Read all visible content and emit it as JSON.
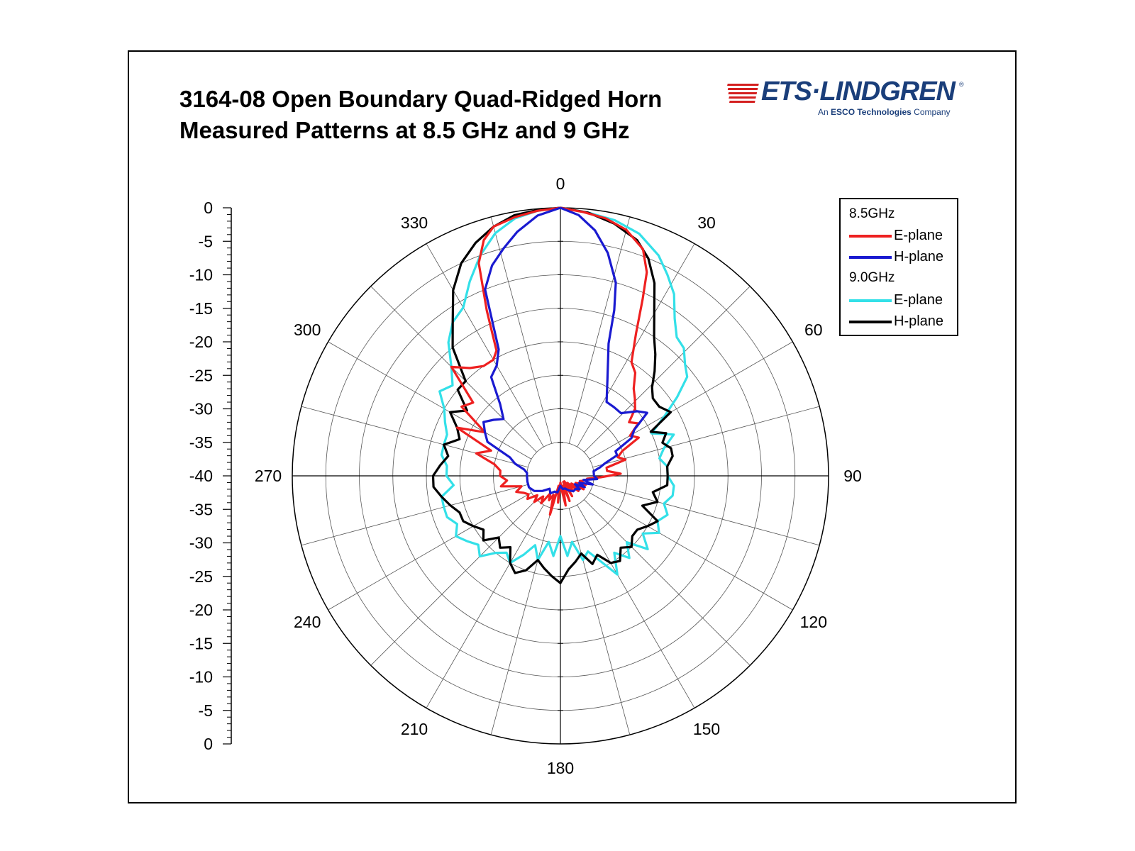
{
  "title_line1": "3164-08 Open Boundary Quad-Ridged Horn",
  "title_line2": "Measured Patterns at 8.5 GHz and 9 GHz",
  "logo": {
    "name": "ETS·LINDGREN",
    "registered": "®",
    "tagline_pre": "An ",
    "tagline_bold": "ESCO Technologies",
    "tagline_post": " Company"
  },
  "legend": {
    "group1": "8.5GHz",
    "group2": "9.0GHz",
    "items": [
      "E-plane",
      "H-plane",
      "E-plane",
      "H-plane"
    ]
  },
  "colors": {
    "e85": "#ee2020",
    "h85": "#1a1ad0",
    "e90": "#33e0e8",
    "h90": "#000000"
  },
  "chart_data": {
    "type": "polar",
    "title": "3164-08 Open Boundary Quad-Ridged Horn Measured Patterns at 8.5 GHz and 9 GHz",
    "radial_unit": "dB",
    "rlim": [
      -40,
      0
    ],
    "radial_step": 5,
    "radial_tick_labels": [
      "0",
      "-5",
      "-10",
      "-15",
      "-20",
      "-25",
      "-30",
      "-35",
      "-40",
      "-35",
      "-30",
      "-25",
      "-20",
      "-15",
      "-10",
      "-5",
      "0"
    ],
    "angle_tick_labels": [
      "0",
      "30",
      "60",
      "90",
      "120",
      "150",
      "180",
      "210",
      "240",
      "270",
      "300",
      "330"
    ],
    "grid": true,
    "legend_position": "top-right",
    "series": [
      {
        "name": "E-plane",
        "group": "8.5GHz",
        "color": "#ee2020",
        "points": [
          [
            0,
            0
          ],
          [
            5,
            -0.5
          ],
          [
            10,
            -1
          ],
          [
            15,
            -2
          ],
          [
            20,
            -4
          ],
          [
            23,
            -7
          ],
          [
            25,
            -11
          ],
          [
            28,
            -16
          ],
          [
            32,
            -20
          ],
          [
            36,
            -21
          ],
          [
            40,
            -23
          ],
          [
            44,
            -24
          ],
          [
            48,
            -25
          ],
          [
            52,
            -27
          ],
          [
            56,
            -26
          ],
          [
            60,
            -28
          ],
          [
            64,
            -27
          ],
          [
            68,
            -30
          ],
          [
            72,
            -31
          ],
          [
            76,
            -30
          ],
          [
            80,
            -33
          ],
          [
            84,
            -33
          ],
          [
            88,
            -31
          ],
          [
            92,
            -34
          ],
          [
            96,
            -36
          ],
          [
            100,
            -36
          ],
          [
            105,
            -37
          ],
          [
            110,
            -36
          ],
          [
            115,
            -37.5
          ],
          [
            120,
            -36
          ],
          [
            125,
            -38
          ],
          [
            130,
            -36.5
          ],
          [
            135,
            -38.5
          ],
          [
            140,
            -37
          ],
          [
            145,
            -39
          ],
          [
            150,
            -36.5
          ],
          [
            155,
            -39
          ],
          [
            160,
            -36
          ],
          [
            165,
            -38.5
          ],
          [
            170,
            -35.5
          ],
          [
            175,
            -38
          ],
          [
            180,
            -39
          ],
          [
            185,
            -36
          ],
          [
            190,
            -38.5
          ],
          [
            195,
            -34
          ],
          [
            200,
            -37
          ],
          [
            205,
            -36
          ],
          [
            210,
            -37
          ],
          [
            215,
            -35
          ],
          [
            220,
            -36
          ],
          [
            225,
            -34.5
          ],
          [
            230,
            -35.5
          ],
          [
            235,
            -34
          ],
          [
            240,
            -34.5
          ],
          [
            245,
            -34
          ],
          [
            250,
            -33
          ],
          [
            255,
            -34
          ],
          [
            260,
            -31
          ],
          [
            265,
            -32
          ],
          [
            270,
            -31
          ],
          [
            275,
            -31
          ],
          [
            280,
            -30
          ],
          [
            285,
            -27
          ],
          [
            290,
            -29
          ],
          [
            295,
            -23
          ],
          [
            300,
            -27
          ],
          [
            305,
            -22
          ],
          [
            310,
            -23
          ],
          [
            315,
            -17
          ],
          [
            320,
            -19
          ],
          [
            325,
            -20
          ],
          [
            330,
            -20
          ],
          [
            333,
            -19
          ],
          [
            336,
            -13
          ],
          [
            339,
            -6
          ],
          [
            342,
            -3
          ],
          [
            345,
            -1.5
          ],
          [
            350,
            -0.8
          ],
          [
            355,
            -0.3
          ],
          [
            360,
            0
          ]
        ]
      },
      {
        "name": "H-plane",
        "group": "8.5GHz",
        "color": "#1a1ad0",
        "points": [
          [
            0,
            0
          ],
          [
            4,
            -1
          ],
          [
            8,
            -3
          ],
          [
            12,
            -6
          ],
          [
            16,
            -10
          ],
          [
            18,
            -14
          ],
          [
            20,
            -19
          ],
          [
            22,
            -21
          ],
          [
            26,
            -24
          ],
          [
            32,
            -27
          ],
          [
            38,
            -27
          ],
          [
            44,
            -27
          ],
          [
            50,
            -25
          ],
          [
            54,
            -24
          ],
          [
            58,
            -27
          ],
          [
            62,
            -28
          ],
          [
            66,
            -31
          ],
          [
            70,
            -31
          ],
          [
            74,
            -33
          ],
          [
            78,
            -34
          ],
          [
            82,
            -35
          ],
          [
            86,
            -35
          ],
          [
            90,
            -35
          ],
          [
            95,
            -34.5
          ],
          [
            100,
            -36.5
          ],
          [
            105,
            -35
          ],
          [
            110,
            -37
          ],
          [
            115,
            -36
          ],
          [
            120,
            -37.5
          ],
          [
            125,
            -36.5
          ],
          [
            130,
            -37
          ],
          [
            140,
            -37
          ],
          [
            150,
            -37.5
          ],
          [
            160,
            -38
          ],
          [
            170,
            -38
          ],
          [
            180,
            -38.5
          ],
          [
            190,
            -37.5
          ],
          [
            200,
            -37.5
          ],
          [
            210,
            -37
          ],
          [
            220,
            -37.5
          ],
          [
            230,
            -36.5
          ],
          [
            240,
            -35.5
          ],
          [
            250,
            -35
          ],
          [
            260,
            -35
          ],
          [
            270,
            -35
          ],
          [
            275,
            -35
          ],
          [
            280,
            -34.5
          ],
          [
            285,
            -33
          ],
          [
            290,
            -32
          ],
          [
            295,
            -28
          ],
          [
            300,
            -27
          ],
          [
            305,
            -26
          ],
          [
            310,
            -27
          ],
          [
            315,
            -28
          ],
          [
            320,
            -26
          ],
          [
            325,
            -22
          ],
          [
            330,
            -21
          ],
          [
            334,
            -19
          ],
          [
            338,
            -10
          ],
          [
            342,
            -7
          ],
          [
            346,
            -5
          ],
          [
            350,
            -3
          ],
          [
            355,
            -1
          ],
          [
            360,
            0
          ]
        ]
      },
      {
        "name": "E-plane",
        "group": "9.0GHz",
        "color": "#33e0e8",
        "points": [
          [
            0,
            0
          ],
          [
            6,
            -0.5
          ],
          [
            12,
            -1
          ],
          [
            18,
            -2
          ],
          [
            24,
            -4
          ],
          [
            28,
            -6
          ],
          [
            32,
            -8
          ],
          [
            36,
            -11
          ],
          [
            40,
            -13
          ],
          [
            44,
            -13.5
          ],
          [
            48,
            -15
          ],
          [
            52,
            -16
          ],
          [
            56,
            -19
          ],
          [
            60,
            -22
          ],
          [
            65,
            -25
          ],
          [
            70,
            -22
          ],
          [
            75,
            -24
          ],
          [
            80,
            -25
          ],
          [
            85,
            -24
          ],
          [
            90,
            -24
          ],
          [
            95,
            -23
          ],
          [
            100,
            -23
          ],
          [
            105,
            -24
          ],
          [
            110,
            -23
          ],
          [
            115,
            -24
          ],
          [
            120,
            -23
          ],
          [
            125,
            -25
          ],
          [
            130,
            -23
          ],
          [
            135,
            -26
          ],
          [
            140,
            -24
          ],
          [
            145,
            -26
          ],
          [
            150,
            -23
          ],
          [
            155,
            -26
          ],
          [
            160,
            -28
          ],
          [
            165,
            -27
          ],
          [
            170,
            -30
          ],
          [
            175,
            -28
          ],
          [
            180,
            -31
          ],
          [
            185,
            -28
          ],
          [
            190,
            -30
          ],
          [
            195,
            -27
          ],
          [
            200,
            -29
          ],
          [
            205,
            -27
          ],
          [
            210,
            -25
          ],
          [
            215,
            -26
          ],
          [
            220,
            -25
          ],
          [
            225,
            -23
          ],
          [
            230,
            -24
          ],
          [
            235,
            -23
          ],
          [
            240,
            -22
          ],
          [
            245,
            -23
          ],
          [
            250,
            -22
          ],
          [
            255,
            -22
          ],
          [
            260,
            -22
          ],
          [
            265,
            -24
          ],
          [
            270,
            -23
          ],
          [
            275,
            -23
          ],
          [
            280,
            -22
          ],
          [
            285,
            -22
          ],
          [
            290,
            -22
          ],
          [
            295,
            -21
          ],
          [
            300,
            -20
          ],
          [
            305,
            -18
          ],
          [
            310,
            -19
          ],
          [
            315,
            -17
          ],
          [
            320,
            -14
          ],
          [
            325,
            -12
          ],
          [
            330,
            -11
          ],
          [
            335,
            -8
          ],
          [
            340,
            -5
          ],
          [
            345,
            -2.5
          ],
          [
            350,
            -1
          ],
          [
            355,
            -0.3
          ],
          [
            360,
            0
          ]
        ]
      },
      {
        "name": "H-plane",
        "group": "9.0GHz",
        "color": "#000000",
        "points": [
          [
            0,
            0
          ],
          [
            6,
            -0.5
          ],
          [
            12,
            -1.5
          ],
          [
            18,
            -3
          ],
          [
            22,
            -5
          ],
          [
            26,
            -8
          ],
          [
            30,
            -12
          ],
          [
            34,
            -15
          ],
          [
            38,
            -17
          ],
          [
            42,
            -19
          ],
          [
            46,
            -21
          ],
          [
            50,
            -22
          ],
          [
            55,
            -22
          ],
          [
            60,
            -21
          ],
          [
            64,
            -25
          ],
          [
            68,
            -23
          ],
          [
            72,
            -24
          ],
          [
            76,
            -23
          ],
          [
            80,
            -23
          ],
          [
            85,
            -24
          ],
          [
            90,
            -24
          ],
          [
            95,
            -24
          ],
          [
            100,
            -26
          ],
          [
            105,
            -25
          ],
          [
            110,
            -27
          ],
          [
            115,
            -24
          ],
          [
            120,
            -25
          ],
          [
            125,
            -26
          ],
          [
            130,
            -26
          ],
          [
            135,
            -25
          ],
          [
            140,
            -26
          ],
          [
            145,
            -24.5
          ],
          [
            150,
            -25
          ],
          [
            155,
            -27
          ],
          [
            160,
            -26
          ],
          [
            165,
            -28
          ],
          [
            170,
            -27
          ],
          [
            175,
            -26
          ],
          [
            180,
            -24
          ],
          [
            185,
            -25
          ],
          [
            190,
            -26
          ],
          [
            195,
            -27
          ],
          [
            200,
            -25
          ],
          [
            205,
            -24
          ],
          [
            210,
            -25
          ],
          [
            215,
            -27
          ],
          [
            220,
            -26
          ],
          [
            225,
            -27
          ],
          [
            230,
            -25
          ],
          [
            235,
            -26
          ],
          [
            240,
            -25
          ],
          [
            245,
            -24
          ],
          [
            250,
            -24
          ],
          [
            255,
            -23
          ],
          [
            260,
            -22
          ],
          [
            265,
            -21
          ],
          [
            270,
            -21
          ],
          [
            275,
            -22
          ],
          [
            280,
            -23
          ],
          [
            285,
            -22
          ],
          [
            290,
            -24
          ],
          [
            295,
            -23
          ],
          [
            300,
            -21
          ],
          [
            305,
            -23
          ],
          [
            310,
            -20
          ],
          [
            315,
            -20
          ],
          [
            320,
            -15
          ],
          [
            325,
            -12
          ],
          [
            330,
            -8
          ],
          [
            335,
            -5
          ],
          [
            340,
            -3
          ],
          [
            345,
            -1.5
          ],
          [
            350,
            -0.5
          ],
          [
            355,
            -0.2
          ],
          [
            360,
            0
          ]
        ]
      }
    ]
  }
}
